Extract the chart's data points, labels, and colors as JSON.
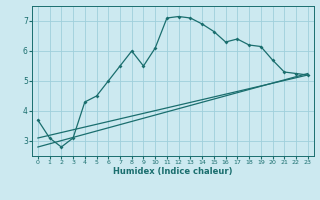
{
  "xlabel": "Humidex (Indice chaleur)",
  "bg_color": "#cce9f0",
  "grid_color": "#9fcfdb",
  "line_color": "#1a6e6e",
  "xlim": [
    -0.5,
    23.5
  ],
  "ylim": [
    2.5,
    7.5
  ],
  "xticks": [
    0,
    1,
    2,
    3,
    4,
    5,
    6,
    7,
    8,
    9,
    10,
    11,
    12,
    13,
    14,
    15,
    16,
    17,
    18,
    19,
    20,
    21,
    22,
    23
  ],
  "yticks": [
    3,
    4,
    5,
    6,
    7
  ],
  "series1_x": [
    0,
    1,
    2,
    3,
    4,
    5,
    6,
    7,
    8,
    9,
    10,
    11,
    12,
    13,
    14,
    15,
    16,
    17,
    18,
    19,
    20,
    21,
    22,
    23
  ],
  "series1_y": [
    3.7,
    3.1,
    2.8,
    3.1,
    4.3,
    4.5,
    5.0,
    5.5,
    6.0,
    5.5,
    6.1,
    7.1,
    7.15,
    7.1,
    6.9,
    6.65,
    6.3,
    6.4,
    6.2,
    6.15,
    5.7,
    5.3,
    5.25,
    5.2
  ],
  "series2_x": [
    0,
    23
  ],
  "series2_y": [
    3.1,
    5.2
  ],
  "series3_x": [
    0,
    23
  ],
  "series3_y": [
    2.8,
    5.25
  ]
}
